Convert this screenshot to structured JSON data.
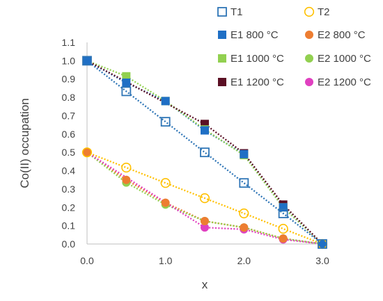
{
  "chart_data": {
    "type": "scatter",
    "title": "",
    "xlabel": "x",
    "ylabel": "Co(II) occupation",
    "xlim": [
      0,
      3
    ],
    "ylim": [
      0,
      1.1
    ],
    "x_ticks": [
      "0.0",
      "1.0",
      "2.0",
      "3.0"
    ],
    "y_ticks": [
      "0.0",
      "0.1",
      "0.2",
      "0.3",
      "0.4",
      "0.5",
      "0.6",
      "0.7",
      "0.8",
      "0.9",
      "1.0",
      "1.1"
    ],
    "grid": false,
    "legend_position": "top-right",
    "series": [
      {
        "name": "T1",
        "color": "#2E75B6",
        "marker": "square-open",
        "line": "dotted",
        "points": [
          [
            0,
            1.0
          ],
          [
            0.5,
            0.833
          ],
          [
            1.0,
            0.667
          ],
          [
            1.5,
            0.5
          ],
          [
            2.0,
            0.333
          ],
          [
            2.5,
            0.167
          ],
          [
            3.0,
            0
          ]
        ]
      },
      {
        "name": "T2",
        "color": "#FFC000",
        "marker": "circle-open",
        "line": "dotted",
        "points": [
          [
            0,
            0.5
          ],
          [
            0.5,
            0.417
          ],
          [
            1.0,
            0.333
          ],
          [
            1.5,
            0.25
          ],
          [
            2.0,
            0.167
          ],
          [
            2.5,
            0.083
          ],
          [
            3.0,
            0
          ]
        ]
      },
      {
        "name": "E1 800 °C",
        "color": "#1F6FC5",
        "marker": "square",
        "line": "dotted",
        "points": [
          [
            0,
            1.0
          ],
          [
            0.5,
            0.88
          ],
          [
            1.0,
            0.78
          ],
          [
            1.5,
            0.62
          ],
          [
            2.0,
            0.49
          ],
          [
            2.5,
            0.2
          ],
          [
            3.0,
            0
          ]
        ]
      },
      {
        "name": "E2 800 °C",
        "color": "#ED7D31",
        "marker": "circle",
        "line": "dotted",
        "points": [
          [
            0,
            0.5
          ],
          [
            0.5,
            0.35
          ],
          [
            1.0,
            0.225
          ],
          [
            1.5,
            0.125
          ],
          [
            2.0,
            0.09
          ],
          [
            2.5,
            0.03
          ],
          [
            3.0,
            0
          ]
        ]
      },
      {
        "name": "E1 1000 °C",
        "color": "#92D050",
        "marker": "square",
        "line": "dotted",
        "points": [
          [
            0,
            1.0
          ],
          [
            0.5,
            0.915
          ],
          [
            1.0,
            0.78
          ],
          [
            1.5,
            0.625
          ],
          [
            2.0,
            0.485
          ],
          [
            2.5,
            0.2
          ],
          [
            3.0,
            0
          ]
        ]
      },
      {
        "name": "E2 1000 °C",
        "color": "#92D050",
        "marker": "circle",
        "line": "dotted",
        "points": [
          [
            0,
            0.5
          ],
          [
            0.5,
            0.335
          ],
          [
            1.0,
            0.215
          ],
          [
            1.5,
            0.125
          ],
          [
            2.0,
            0.09
          ],
          [
            2.5,
            0.03
          ],
          [
            3.0,
            0
          ]
        ]
      },
      {
        "name": "E1 1200 °C",
        "color": "#5B0F24",
        "marker": "square",
        "line": "dotted",
        "points": [
          [
            0,
            1.0
          ],
          [
            1.5,
            0.655
          ],
          [
            2.0,
            0.495
          ],
          [
            2.5,
            0.215
          ],
          [
            3.0,
            0
          ]
        ]
      },
      {
        "name": "E2 1200 °C",
        "color": "#E040C0",
        "marker": "circle",
        "line": "dotted",
        "points": [
          [
            0,
            0.5
          ],
          [
            1.5,
            0.09
          ],
          [
            2.0,
            0.08
          ],
          [
            2.5,
            0.025
          ],
          [
            3.0,
            0
          ]
        ]
      }
    ]
  }
}
